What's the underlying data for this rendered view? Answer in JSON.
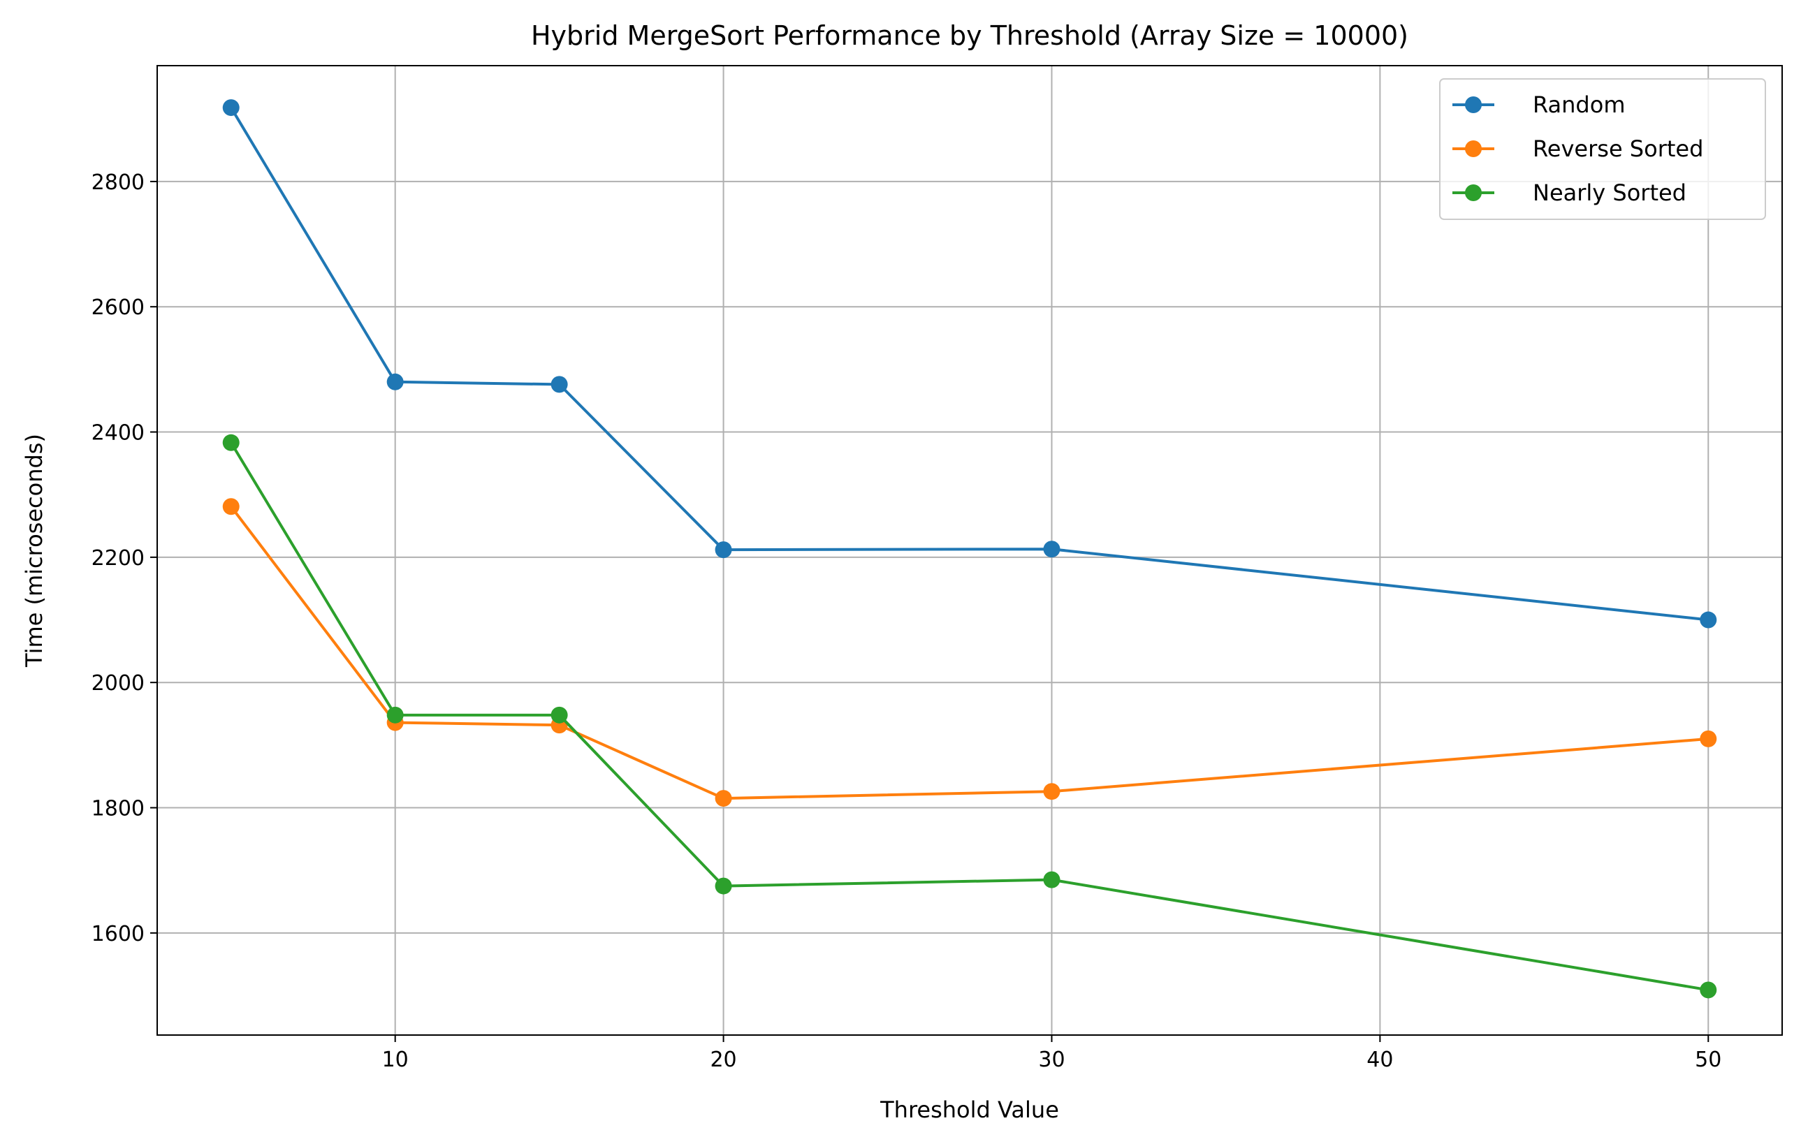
{
  "chart_data": {
    "type": "line",
    "title": "Hybrid MergeSort Performance by Threshold (Array Size = 10000)",
    "xlabel": "Threshold Value",
    "ylabel": "Time (microseconds)",
    "x": [
      5,
      10,
      15,
      20,
      30,
      50
    ],
    "xlim": [
      2.75,
      52.25
    ],
    "ylim": [
      1437,
      2985
    ],
    "xticks": [
      10,
      20,
      30,
      40,
      50
    ],
    "yticks": [
      1600,
      1800,
      2000,
      2200,
      2400,
      2600,
      2800
    ],
    "grid": true,
    "legend_position": "top-right",
    "marker": "circle",
    "series": [
      {
        "name": "Random",
        "color": "#1f77b4",
        "values": [
          2918,
          2480,
          2476,
          2212,
          2213,
          2100
        ]
      },
      {
        "name": "Reverse Sorted",
        "color": "#ff7f0e",
        "values": [
          2281,
          1936,
          1932,
          1815,
          1826,
          1910
        ]
      },
      {
        "name": "Nearly Sorted",
        "color": "#2ca02c",
        "values": [
          2383,
          1948,
          1948,
          1675,
          1685,
          1509
        ]
      }
    ]
  }
}
